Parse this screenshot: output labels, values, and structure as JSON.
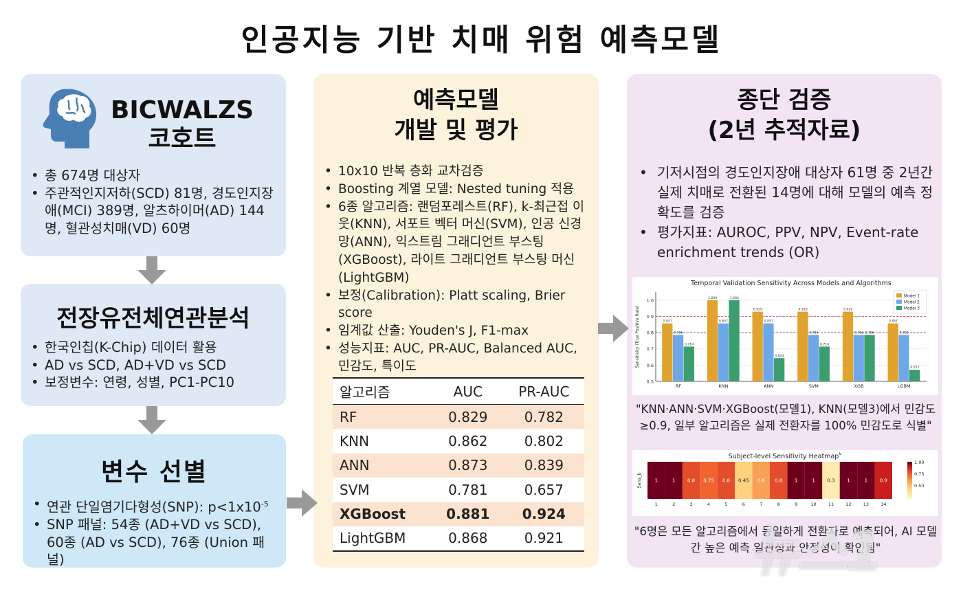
{
  "title": "인공지능 기반 치매 위험 예측모델",
  "cohort": {
    "heading_line1": "BICWALZS",
    "heading_line2": "코호트",
    "bullets": [
      "총 674명 대상자",
      "주관적인지저하(SCD) 81명, 경도인지장애(MCI) 389명, 알츠하이머(AD) 144명, 혈관성치매(VD) 60명"
    ]
  },
  "gwas": {
    "heading": "전장유전체연관분석",
    "bullets": [
      "한국인칩(K-Chip) 데이터 활용",
      "AD vs SCD, AD+VD vs SCD",
      "보정변수: 연령, 성별, PC1-PC10"
    ]
  },
  "variable": {
    "heading": "변수 선별",
    "bullet1_main": "연관 단일염기다형성(SNP): p<1x10",
    "bullet1_sup": "-5",
    "bullet2": "SNP 패널: 54종 (AD+VD vs SCD), 60종 (AD vs SCD), 76종 (Union 패널)"
  },
  "model": {
    "heading_line1": "예측모델",
    "heading_line2": "개발 및 평가",
    "bullets": [
      "10x10 반복 층화 교차검증",
      "Boosting 계열 모델: Nested tuning 적용",
      "6종 알고리즘: 랜덤포레스트(RF), k-최근접 이웃(KNN), 서포트 벡터 머신(SVM), 인공 신경망(ANN), 익스트림 그래디언트 부스팅(XGBoost), 라이트 그래디언트 부스팅 머신(LightGBM)",
      "보정(Calibration): Platt scaling, Brier score",
      "임계값 산출: Youden's J, F1-max",
      "성능지표: AUC, PR-AUC, Balanced AUC, 민감도, 특이도"
    ],
    "table": {
      "headers": [
        "알고리즘",
        "AUC",
        "PR-AUC"
      ],
      "rows": [
        [
          "RF",
          "0.829",
          "0.782"
        ],
        [
          "KNN",
          "0.862",
          "0.802"
        ],
        [
          "ANN",
          "0.873",
          "0.839"
        ],
        [
          "SVM",
          "0.781",
          "0.657"
        ],
        [
          "XGBoost",
          "0.881",
          "0.924"
        ],
        [
          "LightGBM",
          "0.868",
          "0.921"
        ]
      ]
    }
  },
  "validation": {
    "heading_line1": "종단 검증",
    "heading_line2": "(2년 추적자료)",
    "bullets": [
      "기저시점의 경도인지장애 대상자 61명 중 2년간 실제 치매로 전환된 14명에 대해 모델의 예측 정확도를 검증",
      "평가지표: AUROC, PPV, NPV, Event-rate enrichment trends (OR)"
    ],
    "quote1": "\"KNN·ANN·SVM·XGBoost(모델1), KNN(모델3)에서 민감도 ≥0.9, 일부 알고리즘은 실제 전환자를 100% 민감도로 식별\"",
    "quote2": "\"6명은 모든 알고리즘에서 동일하게 전환자로 예측되어, AI 모델 간 높은 예측 일관성과 안정성이 확인됨\""
  },
  "watermark": "뉴스1",
  "chart_data": [
    {
      "type": "bar",
      "title": "Temporal Validation Sensitivity Across Models and Algorithms",
      "xlabel": "",
      "ylabel": "Sensitivity (True Positive Rate)",
      "ylim": [
        0.5,
        1.05
      ],
      "yticks": [
        0.5,
        0.6,
        0.7,
        0.8,
        0.9,
        1.0
      ],
      "categories": [
        "RF",
        "KNN",
        "ANN",
        "SVM",
        "XGB",
        "LGBM"
      ],
      "series": [
        {
          "name": "Model 1",
          "color": "#e0a32e",
          "values": [
            0.857,
            1.0,
            0.929,
            0.929,
            0.929,
            0.857
          ]
        },
        {
          "name": "Model 2",
          "color": "#6fa8e8",
          "values": [
            0.786,
            0.857,
            0.857,
            0.786,
            0.786,
            0.786
          ]
        },
        {
          "name": "Model 3",
          "color": "#3a9e6e",
          "values": [
            0.714,
            1.0,
            0.643,
            0.714,
            0.786,
            0.571
          ]
        }
      ],
      "reference_lines": [
        0.9,
        0.8
      ],
      "legend": "top-right"
    },
    {
      "type": "heatmap",
      "title": "Subject-level Sensitivity Heatmap",
      "title_sup": "b",
      "row_label": "Sens_b",
      "columns": [
        "1",
        "2",
        "3",
        "4",
        "5",
        "6",
        "7",
        "8",
        "9",
        "10",
        "11",
        "12",
        "13",
        "14"
      ],
      "values": [
        1,
        1,
        0.8,
        0.75,
        0.8,
        0.45,
        0.6,
        0.8,
        1,
        1,
        0.3,
        1,
        1,
        0.9
      ],
      "colorbar_ticks": [
        "1.00",
        "0.75",
        "0.50"
      ]
    }
  ]
}
